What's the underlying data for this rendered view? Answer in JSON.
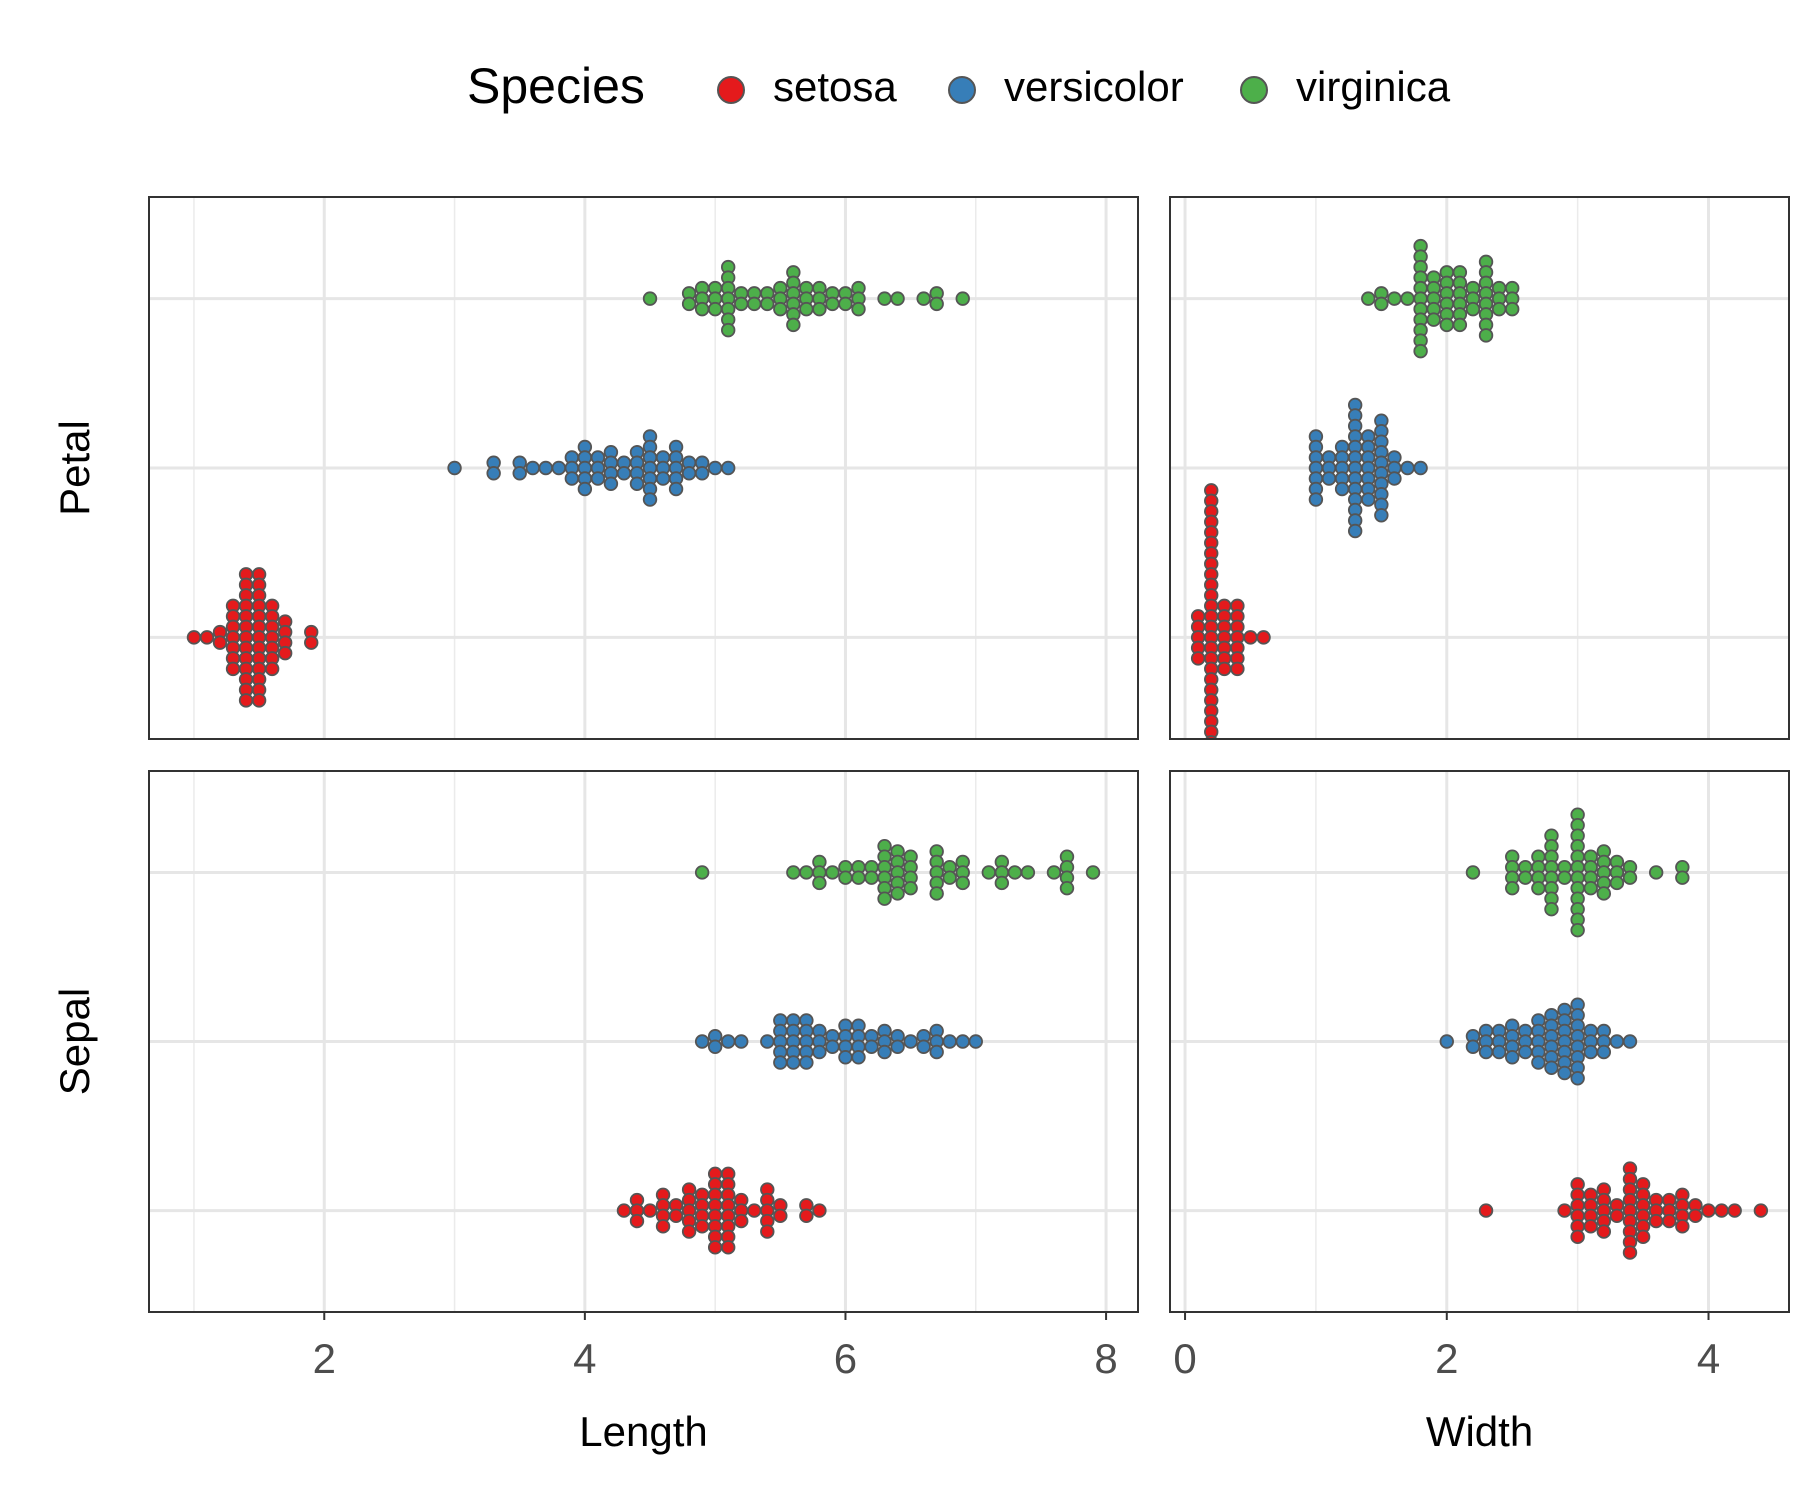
{
  "chart_data": {
    "type": "beeswarm",
    "legend_title": "Species",
    "legend_position": "top",
    "grid": true,
    "facet_rows": [
      "Petal",
      "Sepal"
    ],
    "facet_cols": [
      {
        "xlabel": "Length",
        "xlim": [
          0.655,
          8.245
        ],
        "xticks": [
          2,
          4,
          6,
          8
        ],
        "xminorticks": [
          1,
          3,
          5,
          7
        ]
      },
      {
        "xlabel": "Width",
        "xlim": [
          -0.115,
          4.615
        ],
        "xticks": [
          0,
          2,
          4
        ],
        "xminorticks": [
          1,
          3
        ]
      }
    ],
    "series": [
      {
        "name": "setosa",
        "color": "#e41a1c",
        "values": [
          [
            [
              1.4,
              1.4,
              1.3,
              1.5,
              1.4,
              1.7,
              1.4,
              1.5,
              1.4,
              1.5,
              1.5,
              1.6,
              1.4,
              1.1,
              1.2,
              1.5,
              1.3,
              1.4,
              1.7,
              1.5,
              1.7,
              1.5,
              1.0,
              1.7,
              1.9,
              1.6,
              1.6,
              1.5,
              1.4,
              1.6,
              1.6,
              1.5,
              1.5,
              1.4,
              1.5,
              1.2,
              1.3,
              1.4,
              1.3,
              1.5,
              1.3,
              1.3,
              1.3,
              1.6,
              1.9,
              1.4,
              1.6,
              1.4,
              1.5,
              1.4
            ],
            [
              0.2,
              0.2,
              0.2,
              0.2,
              0.2,
              0.4,
              0.3,
              0.2,
              0.2,
              0.1,
              0.2,
              0.2,
              0.1,
              0.1,
              0.2,
              0.4,
              0.4,
              0.3,
              0.3,
              0.3,
              0.2,
              0.4,
              0.2,
              0.5,
              0.2,
              0.2,
              0.4,
              0.2,
              0.2,
              0.2,
              0.2,
              0.4,
              0.1,
              0.2,
              0.2,
              0.2,
              0.2,
              0.1,
              0.2,
              0.2,
              0.3,
              0.3,
              0.2,
              0.6,
              0.4,
              0.3,
              0.2,
              0.2,
              0.2,
              0.2
            ]
          ],
          [
            [
              5.1,
              4.9,
              4.7,
              4.6,
              5.0,
              5.4,
              4.6,
              5.0,
              4.4,
              4.9,
              5.4,
              4.8,
              4.8,
              4.3,
              5.8,
              5.7,
              5.4,
              5.1,
              5.7,
              5.1,
              5.4,
              5.1,
              4.6,
              5.1,
              4.8,
              5.0,
              5.0,
              5.2,
              5.2,
              4.7,
              4.8,
              5.4,
              5.2,
              5.5,
              4.9,
              5.0,
              5.5,
              4.9,
              4.4,
              5.1,
              5.0,
              4.5,
              4.4,
              5.0,
              5.1,
              4.8,
              5.1,
              4.6,
              5.3,
              5.0
            ],
            [
              3.5,
              3.0,
              3.2,
              3.1,
              3.6,
              3.9,
              3.4,
              3.4,
              2.9,
              3.1,
              3.7,
              3.4,
              3.0,
              3.0,
              4.0,
              4.4,
              3.9,
              3.5,
              3.8,
              3.8,
              3.4,
              3.7,
              3.6,
              3.3,
              3.4,
              3.0,
              3.4,
              3.5,
              3.4,
              3.2,
              3.1,
              3.4,
              4.1,
              4.2,
              3.1,
              3.2,
              3.5,
              3.6,
              3.0,
              3.4,
              3.5,
              2.3,
              3.2,
              3.5,
              3.8,
              3.0,
              3.8,
              3.2,
              3.7,
              3.3
            ]
          ]
        ]
      },
      {
        "name": "versicolor",
        "color": "#377eb8",
        "values": [
          [
            [
              4.7,
              4.5,
              4.9,
              4.0,
              4.6,
              4.5,
              4.7,
              3.3,
              4.6,
              3.9,
              3.5,
              4.2,
              4.0,
              4.7,
              3.6,
              4.4,
              4.5,
              4.1,
              4.5,
              3.9,
              4.8,
              4.0,
              4.9,
              4.7,
              4.3,
              4.4,
              4.8,
              5.0,
              4.5,
              3.5,
              3.8,
              3.7,
              3.9,
              5.1,
              4.5,
              4.5,
              4.7,
              4.4,
              4.1,
              4.0,
              4.4,
              4.6,
              4.0,
              3.3,
              4.2,
              4.2,
              4.2,
              4.3,
              3.0,
              4.1
            ],
            [
              1.4,
              1.5,
              1.5,
              1.3,
              1.5,
              1.3,
              1.6,
              1.0,
              1.3,
              1.4,
              1.0,
              1.5,
              1.0,
              1.4,
              1.3,
              1.4,
              1.5,
              1.0,
              1.5,
              1.1,
              1.8,
              1.3,
              1.5,
              1.2,
              1.3,
              1.4,
              1.4,
              1.7,
              1.5,
              1.0,
              1.1,
              1.0,
              1.2,
              1.6,
              1.5,
              1.6,
              1.5,
              1.3,
              1.3,
              1.3,
              1.2,
              1.4,
              1.2,
              1.0,
              1.3,
              1.2,
              1.3,
              1.3,
              1.1,
              1.3
            ]
          ],
          [
            [
              7.0,
              6.4,
              6.9,
              5.5,
              6.5,
              5.7,
              6.3,
              4.9,
              6.6,
              5.2,
              5.0,
              5.9,
              6.0,
              6.1,
              5.6,
              6.7,
              5.6,
              5.8,
              6.2,
              5.6,
              5.9,
              6.1,
              6.3,
              6.1,
              6.4,
              6.6,
              6.8,
              6.7,
              6.0,
              5.7,
              5.5,
              5.5,
              5.8,
              6.0,
              5.4,
              6.0,
              6.7,
              6.3,
              5.6,
              5.5,
              5.5,
              6.1,
              5.8,
              5.0,
              5.6,
              5.7,
              5.7,
              6.2,
              5.1,
              5.7
            ],
            [
              3.2,
              3.2,
              3.1,
              2.3,
              2.8,
              2.8,
              3.3,
              2.4,
              2.9,
              2.7,
              2.0,
              3.0,
              2.2,
              2.9,
              2.9,
              3.1,
              3.0,
              2.7,
              2.2,
              2.5,
              3.2,
              2.8,
              2.5,
              2.8,
              2.9,
              3.0,
              2.8,
              3.0,
              2.9,
              2.6,
              2.4,
              2.4,
              2.7,
              2.7,
              3.0,
              3.4,
              3.1,
              2.3,
              3.0,
              2.5,
              2.6,
              3.0,
              2.6,
              2.3,
              2.7,
              3.0,
              2.9,
              2.9,
              2.5,
              2.8
            ]
          ]
        ]
      },
      {
        "name": "virginica",
        "color": "#4daf4a",
        "values": [
          [
            [
              6.0,
              5.1,
              5.9,
              5.6,
              5.8,
              6.6,
              4.5,
              6.3,
              5.8,
              6.1,
              5.1,
              5.3,
              5.5,
              5.0,
              5.1,
              5.3,
              5.5,
              6.7,
              6.9,
              5.0,
              5.7,
              4.9,
              6.7,
              4.9,
              5.7,
              6.0,
              4.8,
              4.9,
              5.6,
              5.8,
              6.1,
              6.4,
              5.6,
              5.1,
              5.6,
              6.1,
              5.6,
              5.5,
              4.8,
              5.4,
              5.6,
              5.1,
              5.1,
              5.9,
              5.7,
              5.2,
              5.0,
              5.2,
              5.4,
              5.1
            ],
            [
              2.5,
              1.9,
              2.1,
              1.8,
              2.2,
              2.1,
              1.7,
              1.8,
              1.8,
              2.5,
              2.0,
              1.9,
              2.1,
              2.0,
              2.4,
              2.3,
              1.8,
              2.2,
              2.3,
              1.5,
              2.3,
              2.0,
              2.0,
              1.8,
              2.1,
              1.8,
              1.8,
              1.8,
              2.1,
              1.6,
              1.9,
              2.0,
              2.2,
              1.5,
              1.4,
              2.3,
              2.4,
              1.8,
              1.8,
              2.1,
              2.4,
              2.3,
              1.9,
              2.3,
              2.5,
              2.3,
              1.9,
              2.0,
              2.3,
              1.8
            ]
          ],
          [
            [
              6.3,
              5.8,
              7.1,
              6.3,
              6.5,
              7.6,
              4.9,
              7.3,
              6.7,
              7.2,
              6.5,
              6.4,
              6.8,
              5.7,
              5.8,
              6.4,
              6.5,
              7.7,
              7.7,
              6.0,
              6.9,
              5.6,
              7.7,
              6.3,
              6.7,
              7.2,
              6.2,
              6.1,
              6.4,
              7.2,
              7.4,
              7.9,
              6.4,
              6.3,
              6.1,
              7.7,
              6.3,
              6.4,
              6.0,
              6.9,
              6.7,
              6.9,
              5.8,
              6.8,
              6.7,
              6.7,
              6.3,
              6.5,
              6.2,
              5.9
            ],
            [
              3.3,
              2.7,
              3.0,
              2.9,
              3.0,
              3.0,
              2.5,
              2.9,
              2.5,
              3.6,
              3.2,
              2.7,
              3.0,
              2.5,
              2.8,
              3.2,
              3.0,
              3.8,
              2.6,
              2.2,
              3.2,
              2.8,
              2.8,
              2.7,
              3.3,
              3.2,
              2.8,
              3.0,
              2.8,
              3.0,
              2.8,
              3.8,
              2.8,
              2.8,
              2.6,
              3.0,
              3.4,
              3.1,
              3.0,
              3.1,
              3.1,
              3.1,
              2.7,
              3.2,
              3.3,
              3.0,
              2.5,
              3.0,
              3.4,
              3.0
            ]
          ]
        ]
      }
    ]
  }
}
